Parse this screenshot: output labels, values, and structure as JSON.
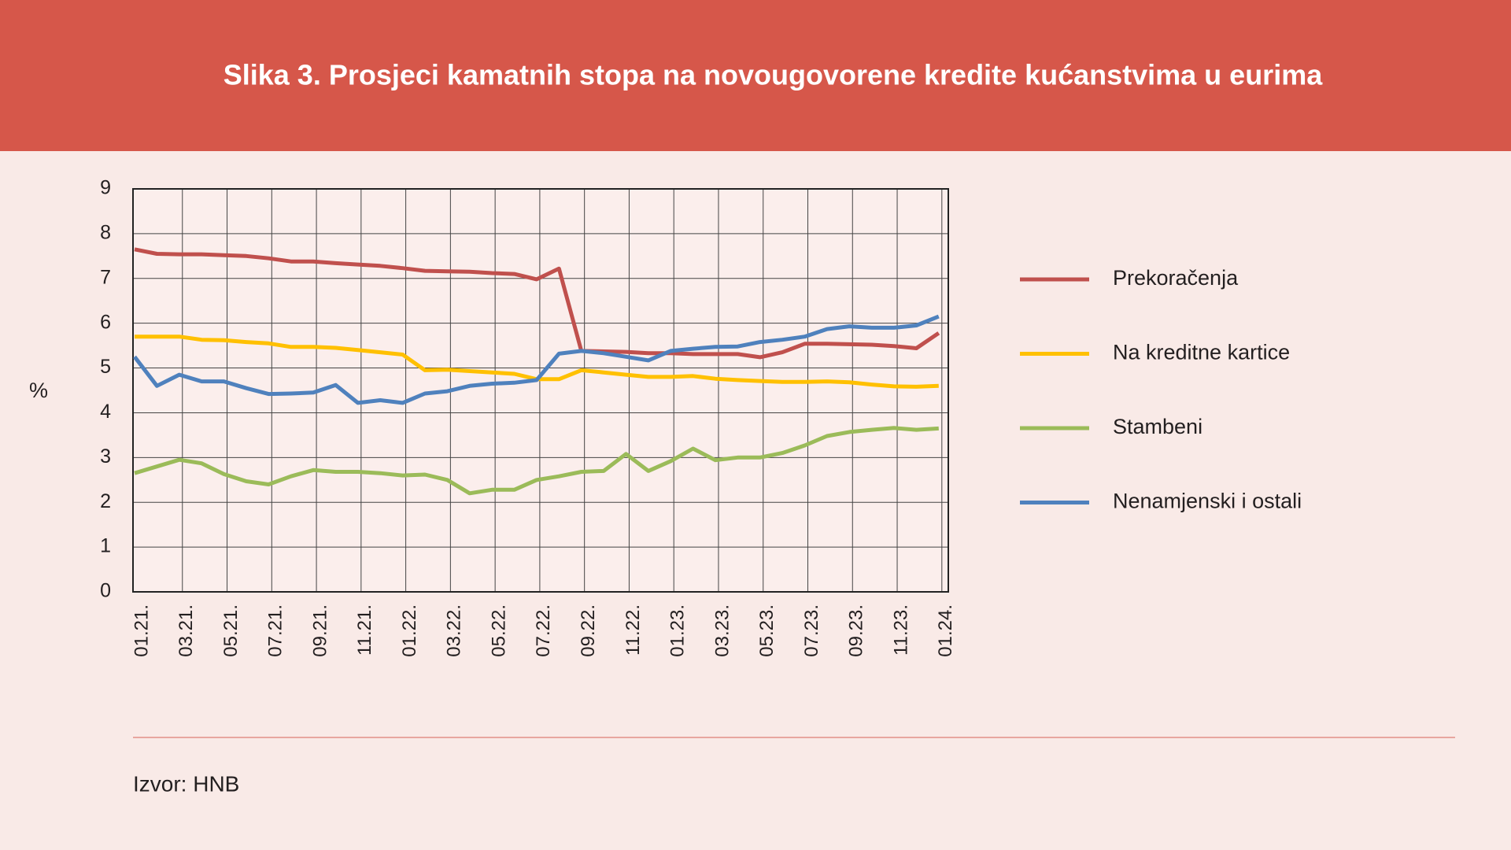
{
  "chart_data": {
    "type": "line",
    "title": "Slika 3. Prosjeci kamatnih stopa na novougovorene kredite kućanstvima u eurima",
    "y_label": "%",
    "source": "Izvor: HNB",
    "categories": [
      "01.21.",
      null,
      "03.21.",
      null,
      "05.21.",
      null,
      "07.21.",
      null,
      "09.21.",
      null,
      "11.21.",
      null,
      "01.22.",
      null,
      "03.22.",
      null,
      "05.22.",
      null,
      "07.22.",
      null,
      "09.22.",
      null,
      "11.22.",
      null,
      "01.23.",
      null,
      "03.23.",
      null,
      "05.23.",
      null,
      "07.23.",
      null,
      "09.23.",
      null,
      "11.23.",
      null,
      "01.24."
    ],
    "series": [
      {
        "name": "Prekoračenja",
        "color": "#c0504d",
        "values": [
          7.65,
          7.55,
          7.54,
          7.54,
          7.52,
          7.5,
          7.45,
          7.38,
          7.38,
          7.34,
          7.31,
          7.28,
          7.23,
          7.17,
          7.16,
          7.15,
          7.12,
          7.1,
          6.98,
          7.22,
          5.38,
          5.37,
          5.36,
          5.33,
          5.33,
          5.31,
          5.31,
          5.31,
          5.24,
          5.35,
          5.54,
          5.54,
          5.53,
          5.52,
          5.49,
          5.44,
          5.78
        ]
      },
      {
        "name": "Na kreditne kartice",
        "color": "#ffc000",
        "values": [
          5.7,
          5.7,
          5.7,
          5.63,
          5.62,
          5.58,
          5.55,
          5.47,
          5.47,
          5.45,
          5.4,
          5.35,
          5.3,
          4.95,
          4.96,
          4.93,
          4.9,
          4.87,
          4.75,
          4.75,
          4.95,
          4.9,
          4.85,
          4.8,
          4.8,
          4.82,
          4.76,
          4.73,
          4.71,
          4.69,
          4.69,
          4.7,
          4.68,
          4.63,
          4.59,
          4.58,
          4.6
        ]
      },
      {
        "name": "Stambeni",
        "color": "#9bbb59",
        "values": [
          2.65,
          2.8,
          2.95,
          2.87,
          2.63,
          2.47,
          2.4,
          2.58,
          2.72,
          2.68,
          2.68,
          2.65,
          2.6,
          2.62,
          2.5,
          2.2,
          2.28,
          2.28,
          2.5,
          2.58,
          2.68,
          2.7,
          3.08,
          2.7,
          2.92,
          3.2,
          2.94,
          3.0,
          3.0,
          3.1,
          3.27,
          3.48,
          3.57,
          3.62,
          3.66,
          3.62,
          3.65
        ]
      },
      {
        "name": "Nenamjenski i ostali",
        "color": "#4f81bd",
        "values": [
          5.25,
          4.6,
          4.85,
          4.7,
          4.7,
          4.55,
          4.42,
          4.43,
          4.45,
          4.62,
          4.22,
          4.28,
          4.22,
          4.43,
          4.48,
          4.6,
          4.65,
          4.67,
          4.73,
          5.32,
          5.38,
          5.33,
          5.25,
          5.17,
          5.38,
          5.43,
          5.47,
          5.48,
          5.58,
          5.63,
          5.7,
          5.87,
          5.93,
          5.9,
          5.9,
          5.95,
          6.15
        ]
      }
    ],
    "ylim": [
      0,
      9
    ],
    "yticks": [
      0,
      1,
      2,
      3,
      4,
      5,
      6,
      7,
      8,
      9
    ],
    "grid": true,
    "legend": "right"
  }
}
